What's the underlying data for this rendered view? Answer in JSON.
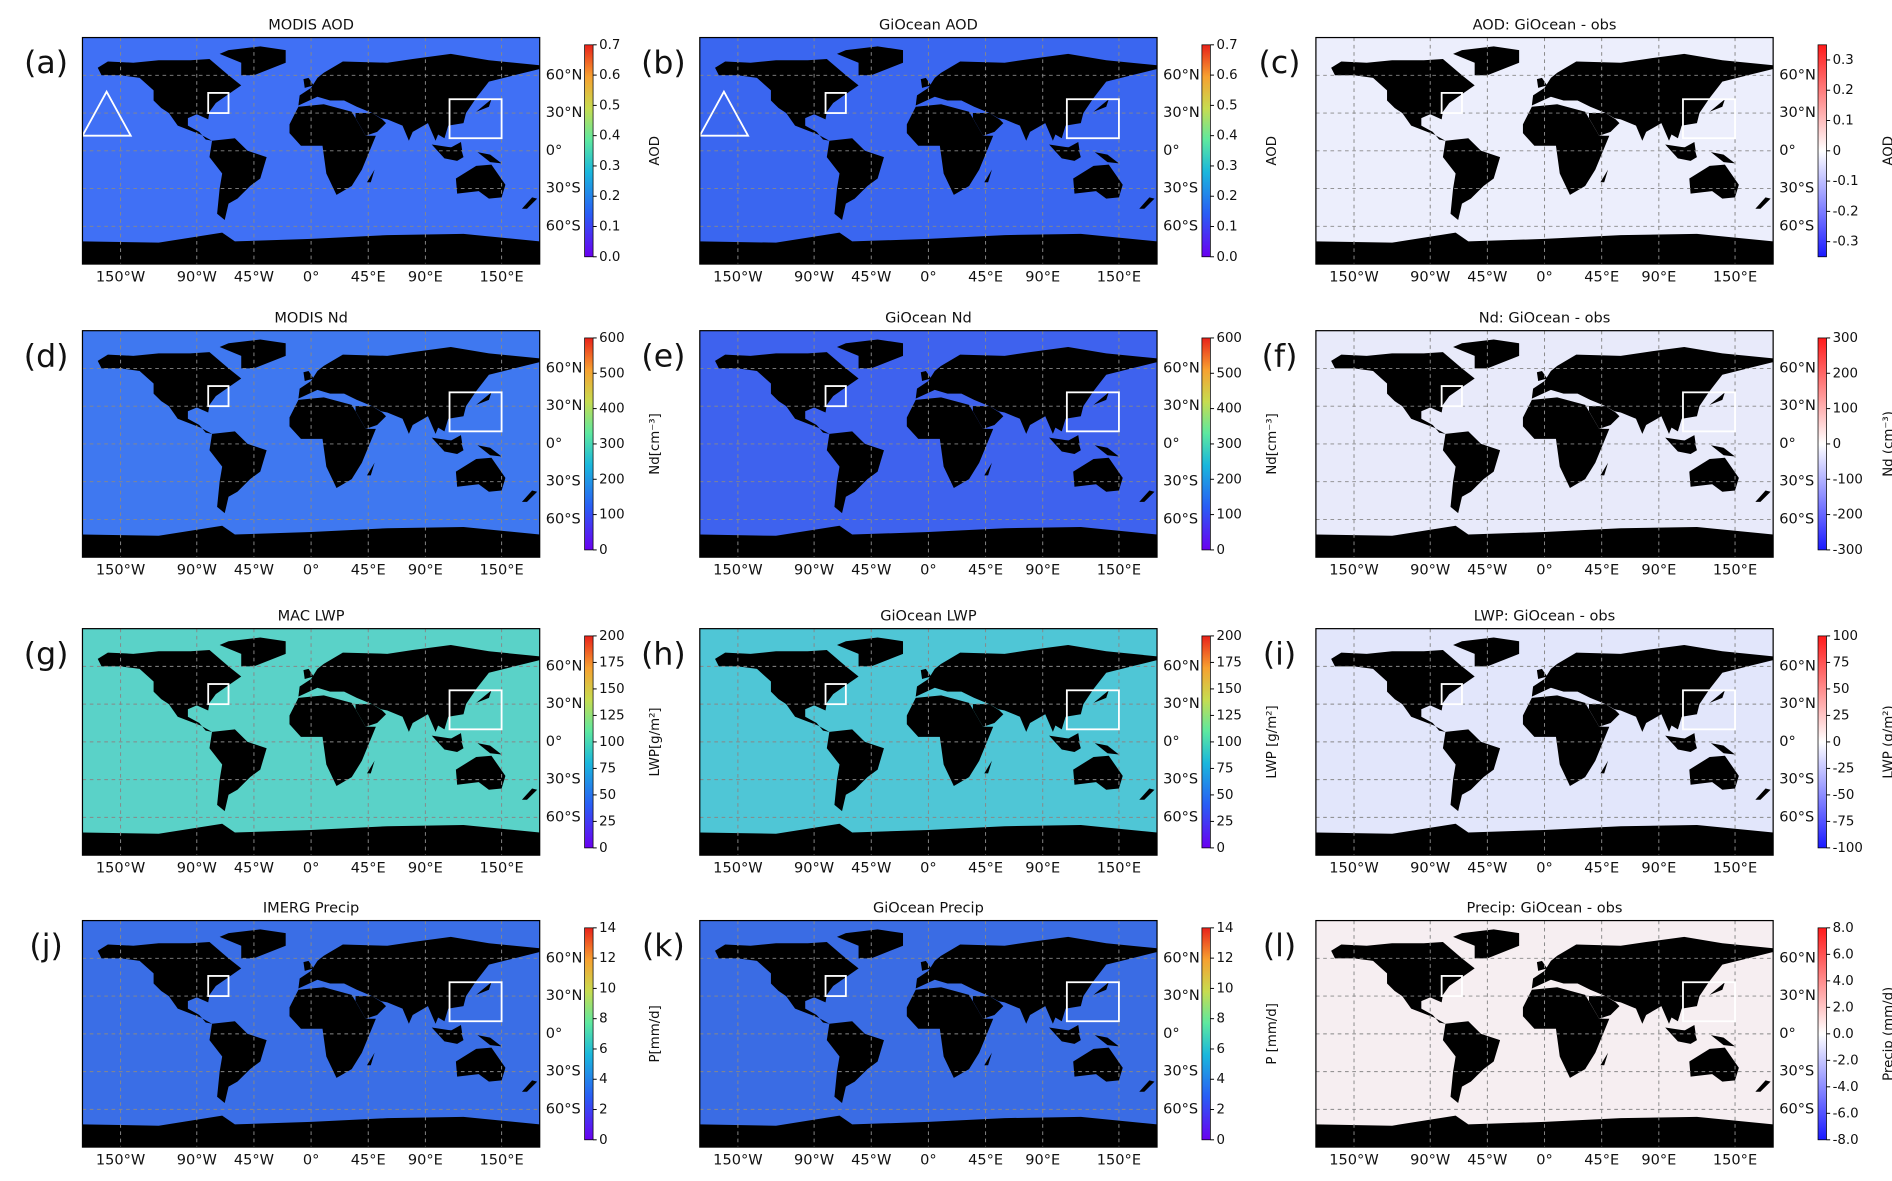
{
  "chart_data": [
    {
      "type": "map",
      "label": "(a)",
      "title": "MODIS AOD",
      "ocean_color": "#4070f5",
      "colormap": "rainbow",
      "clabel": "AOD",
      "clim": [
        0,
        0.7
      ],
      "cticks": [
        {
          "value": 0,
          "label": "0.0"
        },
        0.1,
        0.2,
        0.3,
        0.4,
        0.5,
        0.6,
        0.7
      ],
      "xlim": [
        -180,
        180
      ],
      "ylim": [
        -90,
        90
      ],
      "xticks": [
        {
          "value": -150,
          "label": "150°W"
        },
        {
          "value": -90,
          "label": "90°W"
        },
        {
          "value": -45,
          "label": "45°W"
        },
        {
          "value": 0,
          "label": "0°"
        },
        {
          "value": 45,
          "label": "45°E"
        },
        {
          "value": 90,
          "label": "90°E"
        },
        {
          "value": 150,
          "label": "150°E"
        }
      ],
      "yticks": [
        {
          "value": 60,
          "label": "60°N"
        },
        {
          "value": 30,
          "label": "30°N"
        },
        {
          "value": 0,
          "label": "0°"
        },
        {
          "value": -30,
          "label": "30°S"
        },
        {
          "value": -60,
          "label": "60°S"
        }
      ]
    },
    {
      "type": "map",
      "label": "(b)",
      "title": "GiOcean AOD",
      "ocean_color": "#3a66f0",
      "colormap": "rainbow",
      "clabel": "AOD",
      "clim": [
        0,
        0.7
      ],
      "cticks": [
        {
          "value": 0,
          "label": "0.0"
        },
        0.1,
        0.2,
        0.3,
        0.4,
        0.5,
        0.6,
        0.7
      ],
      "xlim": [
        -180,
        180
      ],
      "ylim": [
        -90,
        90
      ],
      "xticks": [
        {
          "value": -150,
          "label": "150°W"
        },
        {
          "value": -90,
          "label": "90°W"
        },
        {
          "value": -45,
          "label": "45°W"
        },
        {
          "value": 0,
          "label": "0°"
        },
        {
          "value": 45,
          "label": "45°E"
        },
        {
          "value": 90,
          "label": "90°E"
        },
        {
          "value": 150,
          "label": "150°E"
        }
      ],
      "yticks": [
        {
          "value": 60,
          "label": "60°N"
        },
        {
          "value": 30,
          "label": "30°N"
        },
        {
          "value": 0,
          "label": "0°"
        },
        {
          "value": -30,
          "label": "30°S"
        },
        {
          "value": -60,
          "label": "60°S"
        }
      ]
    },
    {
      "type": "map",
      "label": "(c)",
      "title": "AOD: GiOcean - obs",
      "ocean_color": "#eceefc",
      "colormap": "bwr",
      "clabel": "AOD",
      "clim": [
        -0.35,
        0.35
      ],
      "cticks": [
        -0.3,
        -0.2,
        -0.1,
        0,
        0.1,
        0.2,
        0.3
      ],
      "xlim": [
        -180,
        180
      ],
      "ylim": [
        -90,
        90
      ],
      "xticks": [
        {
          "value": -150,
          "label": "150°W"
        },
        {
          "value": -90,
          "label": "90°W"
        },
        {
          "value": -45,
          "label": "45°W"
        },
        {
          "value": 0,
          "label": "0°"
        },
        {
          "value": 45,
          "label": "45°E"
        },
        {
          "value": 90,
          "label": "90°E"
        },
        {
          "value": 150,
          "label": "150°E"
        }
      ],
      "yticks": [
        {
          "value": 60,
          "label": "60°N"
        },
        {
          "value": 30,
          "label": "30°N"
        },
        {
          "value": 0,
          "label": "0°"
        },
        {
          "value": -30,
          "label": "30°S"
        },
        {
          "value": -60,
          "label": "60°S"
        }
      ]
    },
    {
      "type": "map",
      "label": "(d)",
      "title": "MODIS Nd",
      "ocean_color": "#3f78f0",
      "colormap": "rainbow",
      "clabel": "Nd[cm⁻³]",
      "clim": [
        0,
        600
      ],
      "cticks": [
        0,
        100,
        200,
        300,
        400,
        500,
        600
      ],
      "xlim": [
        -180,
        180
      ],
      "ylim": [
        -90,
        90
      ],
      "xticks": [
        {
          "value": -150,
          "label": "150°W"
        },
        {
          "value": -90,
          "label": "90°W"
        },
        {
          "value": -45,
          "label": "45°W"
        },
        {
          "value": 0,
          "label": "0°"
        },
        {
          "value": 45,
          "label": "45°E"
        },
        {
          "value": 90,
          "label": "90°E"
        },
        {
          "value": 150,
          "label": "150°E"
        }
      ],
      "yticks": [
        {
          "value": 60,
          "label": "60°N"
        },
        {
          "value": 30,
          "label": "30°N"
        },
        {
          "value": 0,
          "label": "0°"
        },
        {
          "value": -30,
          "label": "30°S"
        },
        {
          "value": -60,
          "label": "60°S"
        }
      ]
    },
    {
      "type": "map",
      "label": "(e)",
      "title": "GiOcean Nd",
      "ocean_color": "#3e62ee",
      "colormap": "rainbow",
      "clabel": "Nd[cm⁻³]",
      "clim": [
        0,
        600
      ],
      "cticks": [
        0,
        100,
        200,
        300,
        400,
        500,
        600
      ],
      "xlim": [
        -180,
        180
      ],
      "ylim": [
        -90,
        90
      ],
      "xticks": [
        {
          "value": -150,
          "label": "150°W"
        },
        {
          "value": -90,
          "label": "90°W"
        },
        {
          "value": -45,
          "label": "45°W"
        },
        {
          "value": 0,
          "label": "0°"
        },
        {
          "value": 45,
          "label": "45°E"
        },
        {
          "value": 90,
          "label": "90°E"
        },
        {
          "value": 150,
          "label": "150°E"
        }
      ],
      "yticks": [
        {
          "value": 60,
          "label": "60°N"
        },
        {
          "value": 30,
          "label": "30°N"
        },
        {
          "value": 0,
          "label": "0°"
        },
        {
          "value": -30,
          "label": "30°S"
        },
        {
          "value": -60,
          "label": "60°S"
        }
      ]
    },
    {
      "type": "map",
      "label": "(f)",
      "title": "Nd: GiOcean - obs",
      "ocean_color": "#e8eafa",
      "colormap": "bwr",
      "clabel": "Nd (cm⁻³)",
      "clim": [
        -300,
        300
      ],
      "cticks": [
        -300,
        -200,
        -100,
        0,
        100,
        200,
        300
      ],
      "xlim": [
        -180,
        180
      ],
      "ylim": [
        -90,
        90
      ],
      "xticks": [
        {
          "value": -150,
          "label": "150°W"
        },
        {
          "value": -90,
          "label": "90°W"
        },
        {
          "value": -45,
          "label": "45°W"
        },
        {
          "value": 0,
          "label": "0°"
        },
        {
          "value": 45,
          "label": "45°E"
        },
        {
          "value": 90,
          "label": "90°E"
        },
        {
          "value": 150,
          "label": "150°E"
        }
      ],
      "yticks": [
        {
          "value": 60,
          "label": "60°N"
        },
        {
          "value": 30,
          "label": "30°N"
        },
        {
          "value": 0,
          "label": "0°"
        },
        {
          "value": -30,
          "label": "30°S"
        },
        {
          "value": -60,
          "label": "60°S"
        }
      ]
    },
    {
      "type": "map",
      "label": "(g)",
      "title": "MAC LWP",
      "ocean_color": "#5ad2c8",
      "colormap": "rainbow",
      "clabel": "LWP[g/m²]",
      "clim": [
        0,
        200
      ],
      "cticks": [
        0,
        25,
        50,
        75,
        100,
        125,
        150,
        175,
        200
      ],
      "xlim": [
        -180,
        180
      ],
      "ylim": [
        -90,
        90
      ],
      "xticks": [
        {
          "value": -150,
          "label": "150°W"
        },
        {
          "value": -90,
          "label": "90°W"
        },
        {
          "value": -45,
          "label": "45°W"
        },
        {
          "value": 0,
          "label": "0°"
        },
        {
          "value": 45,
          "label": "45°E"
        },
        {
          "value": 90,
          "label": "90°E"
        },
        {
          "value": 150,
          "label": "150°E"
        }
      ],
      "yticks": [
        {
          "value": 60,
          "label": "60°N"
        },
        {
          "value": 30,
          "label": "30°N"
        },
        {
          "value": 0,
          "label": "0°"
        },
        {
          "value": -30,
          "label": "30°S"
        },
        {
          "value": -60,
          "label": "60°S"
        }
      ]
    },
    {
      "type": "map",
      "label": "(h)",
      "title": "GiOcean LWP",
      "ocean_color": "#4fc6d6",
      "colormap": "rainbow",
      "clabel": "LWP [g/m²]",
      "clim": [
        0,
        200
      ],
      "cticks": [
        0,
        25,
        50,
        75,
        100,
        125,
        150,
        175,
        200
      ],
      "xlim": [
        -180,
        180
      ],
      "ylim": [
        -90,
        90
      ],
      "xticks": [
        {
          "value": -150,
          "label": "150°W"
        },
        {
          "value": -90,
          "label": "90°W"
        },
        {
          "value": -45,
          "label": "45°W"
        },
        {
          "value": 0,
          "label": "0°"
        },
        {
          "value": 45,
          "label": "45°E"
        },
        {
          "value": 90,
          "label": "90°E"
        },
        {
          "value": 150,
          "label": "150°E"
        }
      ],
      "yticks": [
        {
          "value": 60,
          "label": "60°N"
        },
        {
          "value": 30,
          "label": "30°N"
        },
        {
          "value": 0,
          "label": "0°"
        },
        {
          "value": -30,
          "label": "30°S"
        },
        {
          "value": -60,
          "label": "60°S"
        }
      ]
    },
    {
      "type": "map",
      "label": "(i)",
      "title": "LWP: GiOcean - obs",
      "ocean_color": "#e2e6fb",
      "colormap": "bwr",
      "clabel": "LWP (g/m²)",
      "clim": [
        -100,
        100
      ],
      "cticks": [
        -100,
        -75,
        -50,
        -25,
        0,
        25,
        50,
        75,
        100
      ],
      "xlim": [
        -180,
        180
      ],
      "ylim": [
        -90,
        90
      ],
      "xticks": [
        {
          "value": -150,
          "label": "150°W"
        },
        {
          "value": -90,
          "label": "90°W"
        },
        {
          "value": -45,
          "label": "45°W"
        },
        {
          "value": 0,
          "label": "0°"
        },
        {
          "value": 45,
          "label": "45°E"
        },
        {
          "value": 90,
          "label": "90°E"
        },
        {
          "value": 150,
          "label": "150°E"
        }
      ],
      "yticks": [
        {
          "value": 60,
          "label": "60°N"
        },
        {
          "value": 30,
          "label": "30°N"
        },
        {
          "value": 0,
          "label": "0°"
        },
        {
          "value": -30,
          "label": "30°S"
        },
        {
          "value": -60,
          "label": "60°S"
        }
      ]
    },
    {
      "type": "map",
      "label": "(j)",
      "title": "IMERG Precip",
      "ocean_color": "#3a6ee6",
      "colormap": "rainbow",
      "clabel": "P[mm/d]",
      "clim": [
        0,
        14
      ],
      "cticks": [
        0,
        2,
        4,
        6,
        8,
        10,
        12,
        14
      ],
      "xlim": [
        -180,
        180
      ],
      "ylim": [
        -90,
        90
      ],
      "xticks": [
        {
          "value": -150,
          "label": "150°W"
        },
        {
          "value": -90,
          "label": "90°W"
        },
        {
          "value": -45,
          "label": "45°W"
        },
        {
          "value": 0,
          "label": "0°"
        },
        {
          "value": 45,
          "label": "45°E"
        },
        {
          "value": 90,
          "label": "90°E"
        },
        {
          "value": 150,
          "label": "150°E"
        }
      ],
      "yticks": [
        {
          "value": 60,
          "label": "60°N"
        },
        {
          "value": 30,
          "label": "30°N"
        },
        {
          "value": 0,
          "label": "0°"
        },
        {
          "value": -30,
          "label": "30°S"
        },
        {
          "value": -60,
          "label": "60°S"
        }
      ]
    },
    {
      "type": "map",
      "label": "(k)",
      "title": "GiOcean Precip",
      "ocean_color": "#3a6ce4",
      "colormap": "rainbow",
      "clabel": "P [mm/d]",
      "clim": [
        0,
        14
      ],
      "cticks": [
        0,
        2,
        4,
        6,
        8,
        10,
        12,
        14
      ],
      "xlim": [
        -180,
        180
      ],
      "ylim": [
        -90,
        90
      ],
      "xticks": [
        {
          "value": -150,
          "label": "150°W"
        },
        {
          "value": -90,
          "label": "90°W"
        },
        {
          "value": -45,
          "label": "45°W"
        },
        {
          "value": 0,
          "label": "0°"
        },
        {
          "value": 45,
          "label": "45°E"
        },
        {
          "value": 90,
          "label": "90°E"
        },
        {
          "value": 150,
          "label": "150°E"
        }
      ],
      "yticks": [
        {
          "value": 60,
          "label": "60°N"
        },
        {
          "value": 30,
          "label": "30°N"
        },
        {
          "value": 0,
          "label": "0°"
        },
        {
          "value": -30,
          "label": "30°S"
        },
        {
          "value": -60,
          "label": "60°S"
        }
      ]
    },
    {
      "type": "map",
      "label": "(l)",
      "title": "Precip: GiOcean - obs",
      "ocean_color": "#f6eef1",
      "colormap": "bwr",
      "clabel": "Precip (mm/d)",
      "clim": [
        -8,
        8
      ],
      "cticks": [
        {
          "value": -8,
          "label": "-8.0"
        },
        {
          "value": -6,
          "label": "-6.0"
        },
        {
          "value": -4,
          "label": "-4.0"
        },
        {
          "value": -2,
          "label": "-2.0"
        },
        {
          "value": 0,
          "label": "0.0"
        },
        {
          "value": 2,
          "label": "2.0"
        },
        {
          "value": 4,
          "label": "4.0"
        },
        {
          "value": 6,
          "label": "6.0"
        },
        {
          "value": 8,
          "label": "8.0"
        }
      ],
      "xlim": [
        -180,
        180
      ],
      "ylim": [
        -90,
        90
      ],
      "xticks": [
        {
          "value": -150,
          "label": "150°W"
        },
        {
          "value": -90,
          "label": "90°W"
        },
        {
          "value": -45,
          "label": "45°W"
        },
        {
          "value": 0,
          "label": "0°"
        },
        {
          "value": 45,
          "label": "45°E"
        },
        {
          "value": 90,
          "label": "90°E"
        },
        {
          "value": 150,
          "label": "150°E"
        }
      ],
      "yticks": [
        {
          "value": 60,
          "label": "60°N"
        },
        {
          "value": 30,
          "label": "30°N"
        },
        {
          "value": 0,
          "label": "0°"
        },
        {
          "value": -30,
          "label": "30°S"
        },
        {
          "value": -60,
          "label": "60°S"
        }
      ]
    }
  ]
}
